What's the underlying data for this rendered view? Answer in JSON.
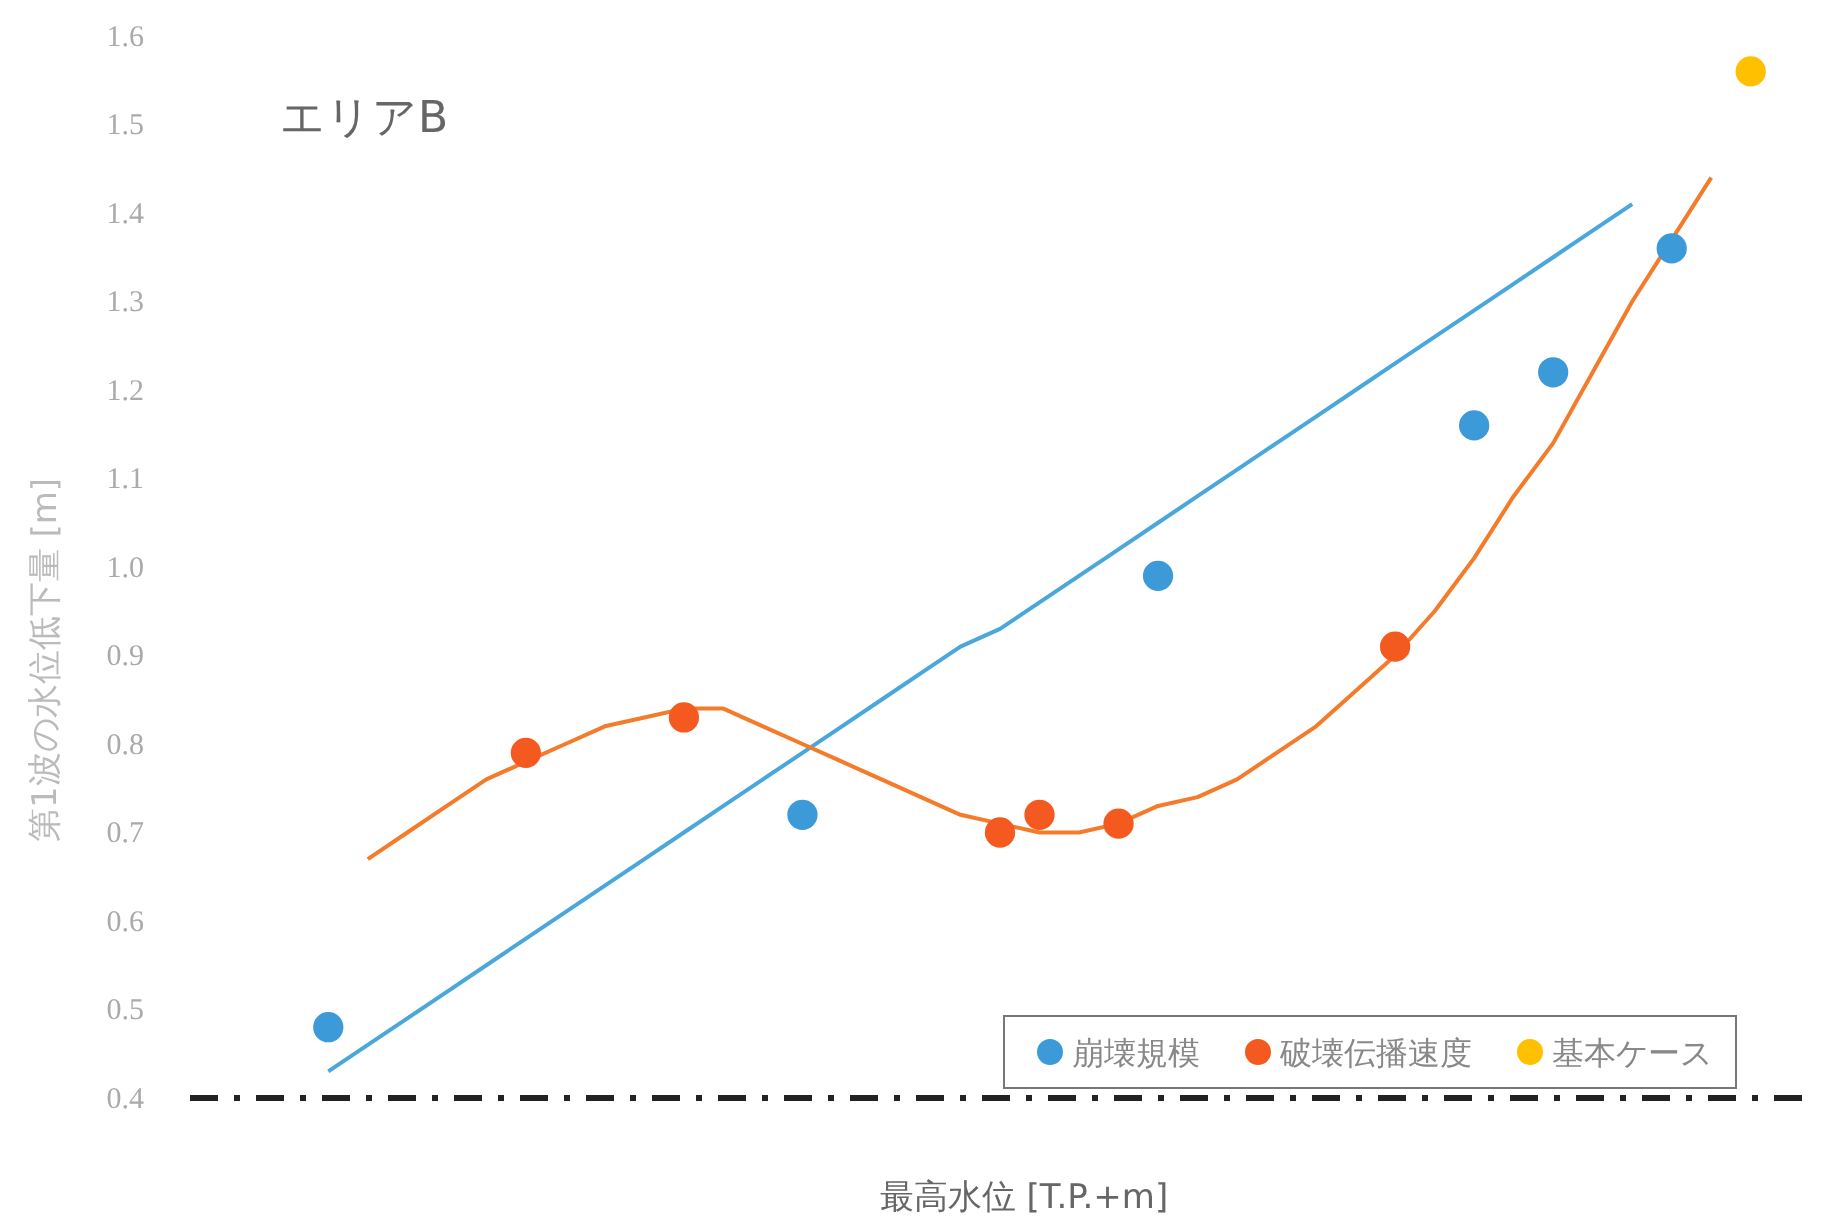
{
  "chart_data": {
    "type": "scatter",
    "title": "エリアB",
    "xlabel": "最高水位 [T.P.+m]",
    "ylabel": "第1波の水位低下量 [m]",
    "categories": [
      null,
      null,
      null,
      null,
      null,
      null,
      null,
      null,
      null,
      null,
      null,
      null,
      null,
      null,
      null,
      null,
      null,
      null,
      null,
      null,
      null,
      null,
      null,
      null,
      null,
      null,
      null,
      null,
      null,
      null,
      null,
      null,
      null,
      null,
      null,
      null,
      null,
      null,
      null,
      null,
      null
    ],
    "ylim": [
      0.4,
      1.6
    ],
    "yticks": [
      0.4,
      0.5,
      0.6,
      0.7,
      0.8,
      0.9,
      {
        "value": 1.0,
        "label": "1.0"
      },
      1.1,
      1.2,
      1.3,
      1.4,
      1.5,
      1.6
    ],
    "tick_labels": "y",
    "grid": false,
    "legend": "bottom right",
    "marker": "circle",
    "series": [
      {
        "type": "line",
        "marker": "none",
        "color": "#4aa7dc",
        "values": [
          null,
          null,
          null,
          0.43,
          0.46,
          0.49,
          0.52,
          0.55,
          0.58,
          0.61,
          0.64,
          0.67,
          0.7,
          0.73,
          0.76,
          0.79,
          0.82,
          0.85,
          0.88,
          0.91,
          0.93,
          0.96,
          0.99,
          1.02,
          1.05,
          1.08,
          1.11,
          1.14,
          1.17,
          1.2,
          1.23,
          1.26,
          1.29,
          1.32,
          1.35,
          1.38,
          1.41,
          null,
          null,
          null,
          null
        ]
      },
      {
        "type": "line",
        "marker": "none",
        "color": "#f47b2a",
        "values": [
          null,
          null,
          null,
          null,
          0.67,
          0.7,
          0.73,
          0.76,
          0.78,
          0.8,
          0.82,
          0.83,
          0.84,
          0.84,
          0.82,
          0.8,
          0.78,
          0.76,
          0.74,
          0.72,
          0.71,
          0.7,
          0.7,
          0.71,
          0.73,
          0.74,
          0.76,
          0.79,
          0.82,
          0.86,
          0.9,
          0.95,
          1.01,
          1.08,
          1.14,
          1.22,
          1.3,
          1.37,
          1.44,
          null,
          null
        ]
      },
      {
        "name": "崩壊規模",
        "color": "#3d9ad8",
        "values": [
          null,
          null,
          null,
          0.48,
          null,
          null,
          null,
          null,
          null,
          null,
          null,
          null,
          null,
          null,
          null,
          0.72,
          null,
          null,
          null,
          null,
          null,
          null,
          null,
          null,
          0.99,
          null,
          null,
          null,
          null,
          null,
          null,
          null,
          1.16,
          null,
          1.22,
          null,
          null,
          1.36,
          null,
          null,
          null
        ]
      },
      {
        "name": "破壊伝播速度",
        "color": "#f45a1f",
        "values": [
          null,
          null,
          null,
          null,
          null,
          null,
          null,
          null,
          0.79,
          null,
          null,
          null,
          0.83,
          null,
          null,
          null,
          null,
          null,
          null,
          null,
          0.7,
          0.72,
          null,
          0.71,
          null,
          null,
          null,
          null,
          null,
          null,
          0.91,
          null,
          null,
          null,
          null,
          null,
          null,
          null,
          null,
          null,
          null
        ]
      },
      {
        "name": "基本ケース",
        "color": "#ffc000",
        "values": [
          null,
          null,
          null,
          null,
          null,
          null,
          null,
          null,
          null,
          null,
          null,
          null,
          null,
          null,
          null,
          null,
          null,
          null,
          null,
          null,
          null,
          null,
          null,
          null,
          null,
          null,
          null,
          null,
          null,
          null,
          null,
          null,
          null,
          null,
          null,
          null,
          null,
          null,
          null,
          1.56,
          null
        ]
      }
    ]
  }
}
